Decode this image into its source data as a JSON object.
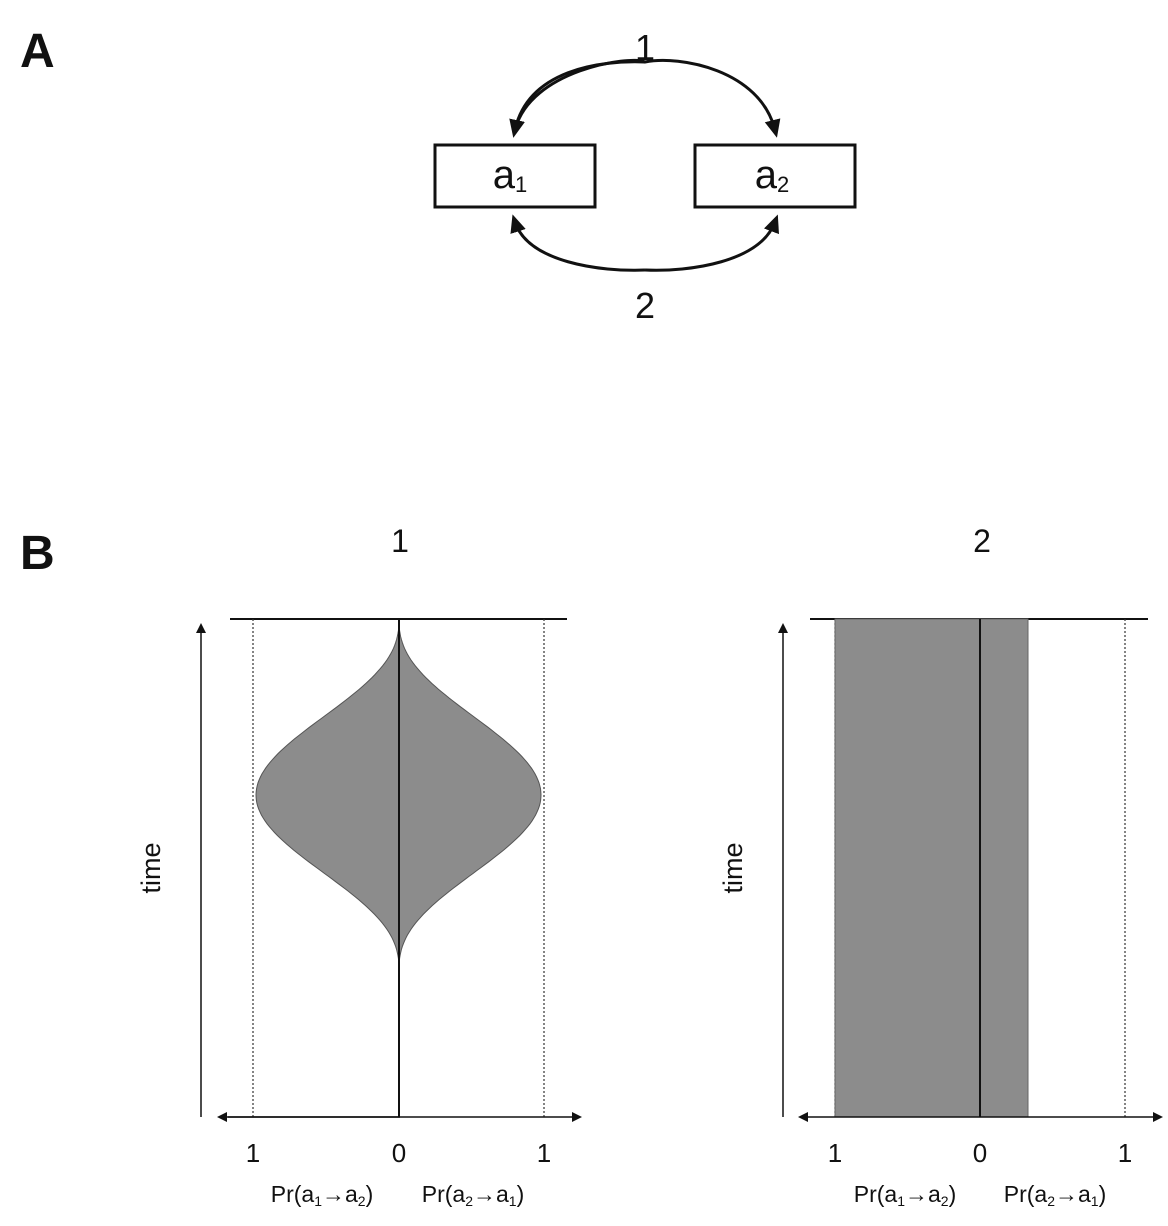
{
  "panels": {
    "a": {
      "label": "A"
    },
    "b": {
      "label": "B"
    }
  },
  "diagram": {
    "state1": {
      "base": "a",
      "sub": "1"
    },
    "state2": {
      "base": "a",
      "sub": "2"
    },
    "arc_top_label": "1",
    "arc_bottom_label": "2"
  },
  "plots": [
    {
      "title": "1",
      "ylabel": "time",
      "ticks": {
        "left": "1",
        "center": "0",
        "right": "1"
      },
      "xlabel_left": {
        "pre": "Pr(a",
        "s1": "1",
        "mid": "→a",
        "s2": "2",
        "post": ")"
      },
      "xlabel_right": {
        "pre": "Pr(a",
        "s1": "2",
        "mid": "→a",
        "s2": "1",
        "post": ")"
      },
      "fill_color": "#8c8c8c"
    },
    {
      "title": "2",
      "ylabel": "time",
      "ticks": {
        "left": "1",
        "center": "0",
        "right": "1"
      },
      "xlabel_left": {
        "pre": "Pr(a",
        "s1": "1",
        "mid": "→a",
        "s2": "2",
        "post": ")"
      },
      "xlabel_right": {
        "pre": "Pr(a",
        "s1": "2",
        "mid": "→a",
        "s2": "1",
        "post": ")"
      },
      "fill_color": "#8c8c8c",
      "band": {
        "left": 1.0,
        "right": 0.33
      }
    }
  ]
}
